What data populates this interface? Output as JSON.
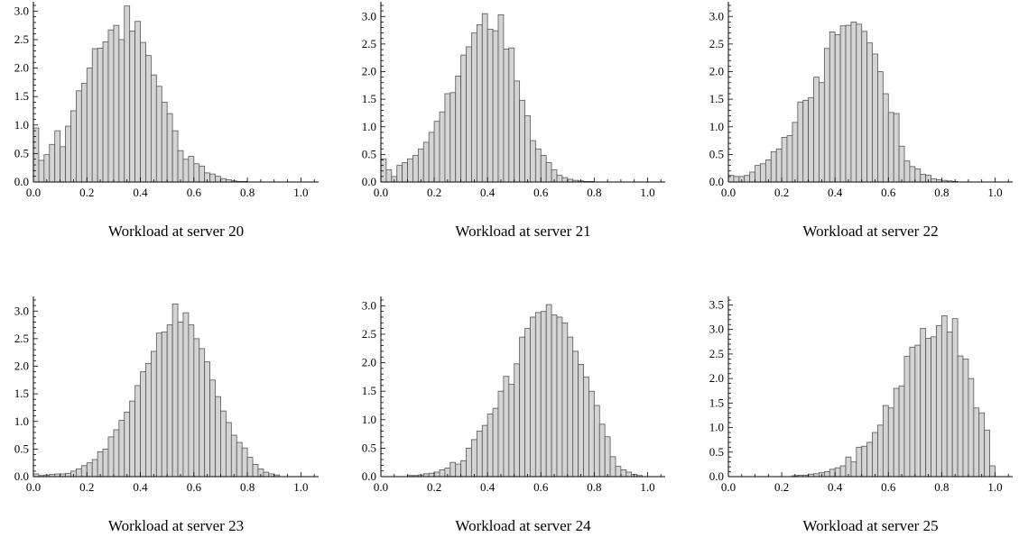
{
  "chart_data": [
    {
      "type": "bar",
      "xlabel": "Workload at server 20",
      "bin_width": 0.02,
      "xlim": [
        0.0,
        1.1
      ],
      "ylim": [
        0.0,
        3.1
      ],
      "xticks": [
        "0.0",
        "0.2",
        "0.4",
        "0.6",
        "0.8",
        "1.0"
      ],
      "yticks": [
        "0.0",
        "0.5",
        "1.0",
        "1.5",
        "2.0",
        "2.5",
        "3.0"
      ],
      "bin_starts": [
        0.0,
        0.02,
        0.04,
        0.06,
        0.08,
        0.1,
        0.12,
        0.14,
        0.16,
        0.18,
        0.2,
        0.22,
        0.24,
        0.26,
        0.28,
        0.3,
        0.32,
        0.34,
        0.36,
        0.38,
        0.4,
        0.42,
        0.44,
        0.46,
        0.48,
        0.5,
        0.52,
        0.54,
        0.56,
        0.58,
        0.6,
        0.62,
        0.64,
        0.66,
        0.68,
        0.7,
        0.72,
        0.74,
        0.76,
        0.78
      ],
      "values": [
        0.95,
        0.38,
        0.48,
        0.66,
        0.9,
        0.62,
        0.98,
        1.25,
        1.6,
        1.73,
        2.0,
        2.34,
        2.35,
        2.46,
        2.67,
        2.75,
        2.5,
        3.09,
        2.65,
        2.82,
        2.45,
        2.22,
        1.88,
        1.68,
        1.4,
        1.2,
        0.9,
        0.55,
        0.4,
        0.45,
        0.32,
        0.28,
        0.16,
        0.14,
        0.1,
        0.06,
        0.04,
        0.02,
        0.01,
        0.01
      ]
    },
    {
      "type": "bar",
      "xlabel": "Workload at server 21",
      "bin_width": 0.02,
      "xlim": [
        0.0,
        1.1
      ],
      "ylim": [
        0.0,
        3.2
      ],
      "xticks": [
        "0.0",
        "0.2",
        "0.4",
        "0.6",
        "0.8",
        "1.0"
      ],
      "yticks": [
        "0.0",
        "0.5",
        "1.0",
        "1.5",
        "2.0",
        "2.5",
        "3.0"
      ],
      "bin_starts": [
        0.0,
        0.02,
        0.04,
        0.06,
        0.08,
        0.1,
        0.12,
        0.14,
        0.16,
        0.18,
        0.2,
        0.22,
        0.24,
        0.26,
        0.28,
        0.3,
        0.32,
        0.34,
        0.36,
        0.38,
        0.4,
        0.42,
        0.44,
        0.46,
        0.48,
        0.5,
        0.52,
        0.54,
        0.56,
        0.58,
        0.6,
        0.62,
        0.64,
        0.66,
        0.68,
        0.7,
        0.72,
        0.74,
        0.76,
        0.78
      ],
      "values": [
        0.42,
        0.22,
        0.1,
        0.3,
        0.35,
        0.42,
        0.48,
        0.6,
        0.72,
        0.9,
        1.1,
        1.27,
        1.6,
        1.62,
        1.92,
        2.3,
        2.45,
        2.7,
        2.85,
        3.05,
        2.77,
        2.74,
        3.03,
        2.41,
        2.43,
        1.83,
        1.48,
        1.2,
        0.75,
        0.6,
        0.48,
        0.35,
        0.22,
        0.12,
        0.08,
        0.05,
        0.03,
        0.02,
        0.01,
        0.01
      ]
    },
    {
      "type": "bar",
      "xlabel": "Workload at server 22",
      "bin_width": 0.02,
      "xlim": [
        0.0,
        1.1
      ],
      "ylim": [
        0.0,
        3.2
      ],
      "xticks": [
        "0.0",
        "0.2",
        "0.4",
        "0.6",
        "0.8",
        "1.0"
      ],
      "yticks": [
        "0.0",
        "0.5",
        "1.0",
        "1.5",
        "2.0",
        "2.5",
        "3.0"
      ],
      "bin_starts": [
        0.0,
        0.02,
        0.04,
        0.06,
        0.08,
        0.1,
        0.12,
        0.14,
        0.16,
        0.18,
        0.2,
        0.22,
        0.24,
        0.26,
        0.28,
        0.3,
        0.32,
        0.34,
        0.36,
        0.38,
        0.4,
        0.42,
        0.44,
        0.46,
        0.48,
        0.5,
        0.52,
        0.54,
        0.56,
        0.58,
        0.6,
        0.62,
        0.64,
        0.66,
        0.68,
        0.7,
        0.72,
        0.74,
        0.76,
        0.78,
        0.8,
        0.82,
        0.84
      ],
      "values": [
        0.12,
        0.1,
        0.1,
        0.12,
        0.18,
        0.3,
        0.33,
        0.4,
        0.55,
        0.6,
        0.81,
        0.84,
        1.08,
        1.45,
        1.48,
        1.53,
        1.9,
        1.8,
        2.42,
        2.72,
        2.67,
        2.83,
        2.84,
        2.9,
        2.86,
        2.73,
        2.52,
        2.32,
        2.0,
        1.6,
        1.26,
        1.24,
        0.65,
        0.38,
        0.28,
        0.24,
        0.14,
        0.12,
        0.06,
        0.04,
        0.03,
        0.02,
        0.01
      ]
    },
    {
      "type": "bar",
      "xlabel": "Workload at server 23",
      "bin_width": 0.02,
      "xlim": [
        0.0,
        1.1
      ],
      "ylim": [
        0.0,
        3.2
      ],
      "xticks": [
        "0.0",
        "0.2",
        "0.4",
        "0.6",
        "0.8",
        "1.0"
      ],
      "yticks": [
        "0.0",
        "0.5",
        "1.0",
        "1.5",
        "2.0",
        "2.5",
        "3.0"
      ],
      "bin_starts": [
        0.0,
        0.02,
        0.04,
        0.06,
        0.08,
        0.1,
        0.12,
        0.14,
        0.16,
        0.18,
        0.2,
        0.22,
        0.24,
        0.26,
        0.28,
        0.3,
        0.32,
        0.34,
        0.36,
        0.38,
        0.4,
        0.42,
        0.44,
        0.46,
        0.48,
        0.5,
        0.52,
        0.54,
        0.56,
        0.58,
        0.6,
        0.62,
        0.64,
        0.66,
        0.68,
        0.7,
        0.72,
        0.74,
        0.76,
        0.78,
        0.8,
        0.82,
        0.84,
        0.86,
        0.88,
        0.9
      ],
      "values": [
        0.05,
        0.02,
        0.03,
        0.04,
        0.05,
        0.05,
        0.06,
        0.1,
        0.14,
        0.2,
        0.25,
        0.31,
        0.45,
        0.5,
        0.72,
        0.85,
        1.02,
        1.17,
        1.37,
        1.65,
        1.9,
        2.05,
        2.27,
        2.6,
        2.62,
        2.75,
        3.13,
        2.8,
        2.97,
        2.75,
        2.5,
        2.32,
        2.08,
        1.75,
        1.45,
        1.19,
        0.98,
        0.75,
        0.62,
        0.52,
        0.35,
        0.22,
        0.14,
        0.08,
        0.05,
        0.03
      ]
    },
    {
      "type": "bar",
      "xlabel": "Workload at server 24",
      "bin_width": 0.02,
      "xlim": [
        0.0,
        1.1
      ],
      "ylim": [
        0.0,
        3.1
      ],
      "xticks": [
        "0.0",
        "0.2",
        "0.4",
        "0.6",
        "0.8",
        "1.0"
      ],
      "yticks": [
        "0.0",
        "0.5",
        "1.0",
        "1.5",
        "2.0",
        "2.5",
        "3.0"
      ],
      "bin_starts": [
        0.0,
        0.02,
        0.04,
        0.06,
        0.08,
        0.1,
        0.12,
        0.14,
        0.16,
        0.18,
        0.2,
        0.22,
        0.24,
        0.26,
        0.28,
        0.3,
        0.32,
        0.34,
        0.36,
        0.38,
        0.4,
        0.42,
        0.44,
        0.46,
        0.48,
        0.5,
        0.52,
        0.54,
        0.56,
        0.58,
        0.6,
        0.62,
        0.64,
        0.66,
        0.68,
        0.7,
        0.72,
        0.74,
        0.76,
        0.78,
        0.8,
        0.82,
        0.84,
        0.86,
        0.88,
        0.9,
        0.92,
        0.94,
        0.96
      ],
      "values": [
        0.0,
        0.0,
        0.0,
        0.0,
        0.0,
        0.02,
        0.02,
        0.03,
        0.05,
        0.06,
        0.08,
        0.12,
        0.15,
        0.25,
        0.22,
        0.28,
        0.5,
        0.65,
        0.8,
        0.9,
        1.1,
        1.2,
        1.5,
        1.76,
        1.62,
        1.98,
        2.45,
        2.6,
        2.8,
        2.88,
        2.9,
        3.02,
        2.84,
        2.8,
        2.7,
        2.45,
        2.2,
        1.97,
        1.75,
        1.5,
        1.25,
        0.92,
        0.7,
        0.35,
        0.18,
        0.12,
        0.08,
        0.04,
        0.02
      ]
    },
    {
      "type": "bar",
      "xlabel": "Workload at server 25",
      "bin_width": 0.02,
      "xlim": [
        0.0,
        1.1
      ],
      "ylim": [
        0.0,
        3.6
      ],
      "xticks": [
        "0.0",
        "0.2",
        "0.4",
        "0.6",
        "0.8",
        "1.0"
      ],
      "yticks": [
        "0.0",
        "0.5",
        "1.0",
        "1.5",
        "2.0",
        "2.5",
        "3.0",
        "3.5"
      ],
      "bin_starts": [
        0.0,
        0.02,
        0.04,
        0.06,
        0.08,
        0.1,
        0.12,
        0.14,
        0.16,
        0.18,
        0.2,
        0.22,
        0.24,
        0.26,
        0.28,
        0.3,
        0.32,
        0.34,
        0.36,
        0.38,
        0.4,
        0.42,
        0.44,
        0.46,
        0.48,
        0.5,
        0.52,
        0.54,
        0.56,
        0.58,
        0.6,
        0.62,
        0.64,
        0.66,
        0.68,
        0.7,
        0.72,
        0.74,
        0.76,
        0.78,
        0.8,
        0.82,
        0.84,
        0.86,
        0.88,
        0.9,
        0.92,
        0.94,
        0.96,
        0.98
      ],
      "values": [
        0.0,
        0.0,
        0.0,
        0.0,
        0.0,
        0.0,
        0.0,
        0.0,
        0.0,
        0.0,
        0.0,
        0.0,
        0.02,
        0.03,
        0.03,
        0.05,
        0.06,
        0.08,
        0.1,
        0.15,
        0.18,
        0.22,
        0.4,
        0.3,
        0.6,
        0.62,
        0.7,
        0.9,
        1.05,
        1.45,
        1.4,
        1.8,
        1.85,
        2.45,
        2.64,
        2.68,
        3.02,
        2.82,
        2.85,
        3.08,
        3.28,
        2.95,
        3.22,
        2.46,
        2.4,
        2.0,
        1.4,
        1.3,
        0.95,
        0.22
      ]
    }
  ]
}
